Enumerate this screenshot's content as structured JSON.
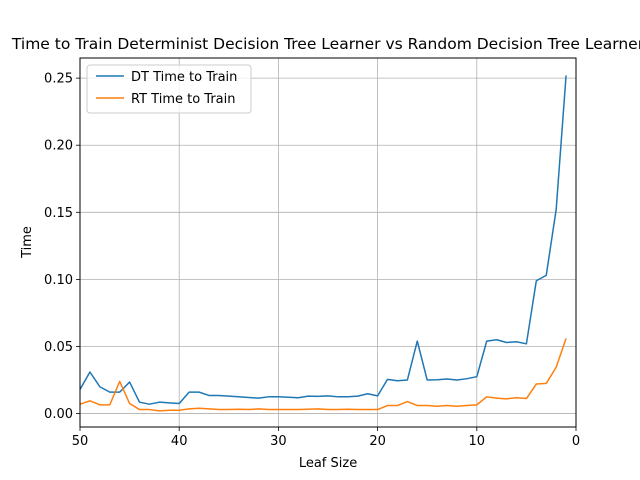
{
  "chart_data": {
    "type": "line",
    "title": "Time to Train Determinist Decision Tree Learner vs Random Decision Tree Learner",
    "xlabel": "Leaf Size",
    "ylabel": "Time",
    "xlim": [
      50,
      0
    ],
    "ylim": [
      -0.01,
      0.265
    ],
    "x_ticks": [
      50,
      40,
      30,
      20,
      10,
      0
    ],
    "y_ticks": [
      0.0,
      0.05,
      0.1,
      0.15,
      0.2,
      0.25
    ],
    "y_tick_labels": [
      "0.00",
      "0.05",
      "0.10",
      "0.15",
      "0.20",
      "0.25"
    ],
    "grid": true,
    "legend_position": "upper-left",
    "x": [
      50,
      49,
      48,
      47,
      46,
      45,
      44,
      43,
      42,
      41,
      40,
      39,
      38,
      37,
      36,
      35,
      34,
      33,
      32,
      31,
      30,
      29,
      28,
      27,
      26,
      25,
      24,
      23,
      22,
      21,
      20,
      19,
      18,
      17,
      16,
      15,
      14,
      13,
      12,
      11,
      10,
      9,
      8,
      7,
      6,
      5,
      4,
      3,
      2,
      1
    ],
    "series": [
      {
        "name": "DT Time to Train",
        "color": "#1f77b4",
        "values": [
          0.018,
          0.031,
          0.02,
          0.016,
          0.016,
          0.0235,
          0.0085,
          0.007,
          0.0085,
          0.008,
          0.0075,
          0.016,
          0.016,
          0.0135,
          0.0135,
          0.013,
          0.0125,
          0.012,
          0.0115,
          0.0125,
          0.0125,
          0.0122,
          0.0118,
          0.013,
          0.0128,
          0.0132,
          0.0125,
          0.0125,
          0.013,
          0.0148,
          0.0132,
          0.0255,
          0.0245,
          0.025,
          0.054,
          0.025,
          0.0252,
          0.0258,
          0.025,
          0.026,
          0.0275,
          0.054,
          0.055,
          0.053,
          0.0535,
          0.052,
          0.099,
          0.103,
          0.152,
          0.252
        ]
      },
      {
        "name": "RT Time to Train",
        "color": "#ff7f0e",
        "values": [
          0.007,
          0.0095,
          0.0065,
          0.0065,
          0.024,
          0.0075,
          0.003,
          0.003,
          0.002,
          0.0025,
          0.0025,
          0.0035,
          0.004,
          0.0035,
          0.003,
          0.003,
          0.0032,
          0.003,
          0.0035,
          0.003,
          0.003,
          0.003,
          0.003,
          0.0032,
          0.0035,
          0.003,
          0.003,
          0.0032,
          0.003,
          0.003,
          0.003,
          0.006,
          0.006,
          0.009,
          0.006,
          0.006,
          0.0055,
          0.006,
          0.0055,
          0.006,
          0.0065,
          0.0125,
          0.0115,
          0.011,
          0.0118,
          0.0112,
          0.022,
          0.0225,
          0.0345,
          0.056
        ]
      }
    ]
  }
}
